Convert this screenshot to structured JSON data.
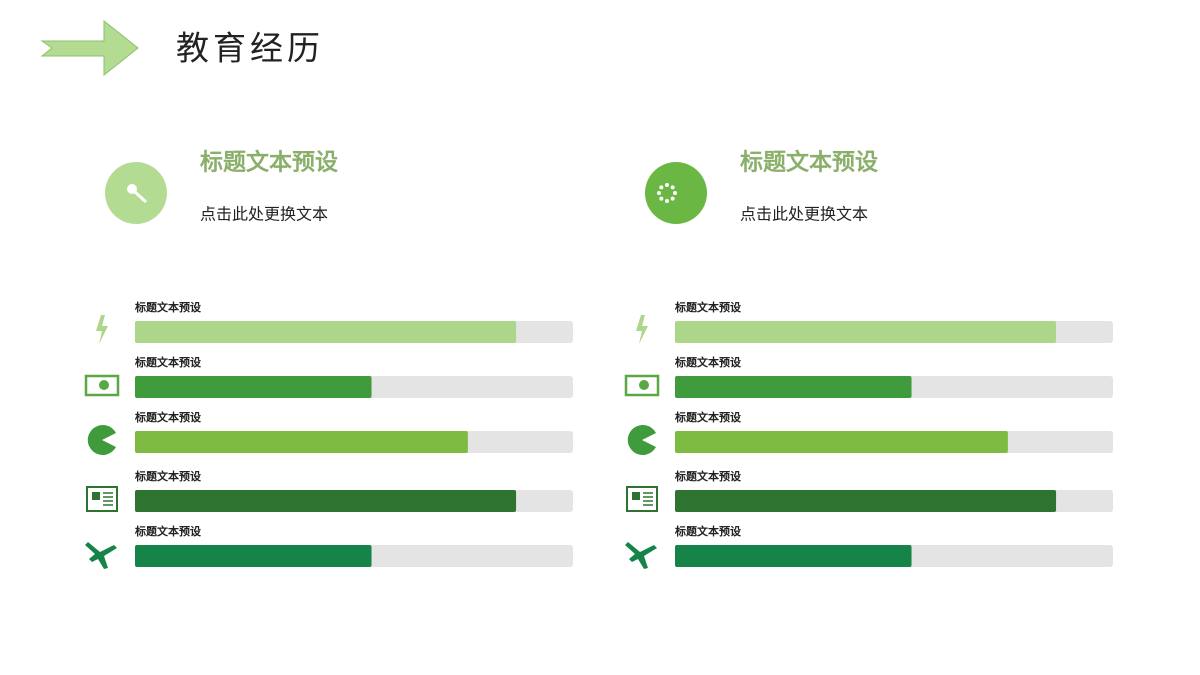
{
  "title": "教育经历",
  "bar_range": [
    0,
    100
  ],
  "panels": [
    {
      "heading": "标题文本预设",
      "text": "点击此处更换文本",
      "badge_color": "#b3db92",
      "items": [
        {
          "label": "标题文本预设",
          "value": 87,
          "color": "#acd68a"
        },
        {
          "label": "标题文本预设",
          "value": 54,
          "color": "#3f9b3c"
        },
        {
          "label": "标题文本预设",
          "value": 76,
          "color": "#7dbb42"
        },
        {
          "label": "标题文本预设",
          "value": 87,
          "color": "#2e7430"
        },
        {
          "label": "标题文本预设",
          "value": 54,
          "color": "#168449"
        }
      ]
    },
    {
      "heading": "标题文本预设",
      "text": "点击此处更换文本",
      "badge_color": "#6ab843",
      "items": [
        {
          "label": "标题文本预设",
          "value": 87,
          "color": "#acd68a"
        },
        {
          "label": "标题文本预设",
          "value": 54,
          "color": "#3f9b3c"
        },
        {
          "label": "标题文本预设",
          "value": 76,
          "color": "#7dbb42"
        },
        {
          "label": "标题文本预设",
          "value": 87,
          "color": "#2e7430"
        },
        {
          "label": "标题文本预设",
          "value": 54,
          "color": "#168449"
        }
      ]
    }
  ]
}
